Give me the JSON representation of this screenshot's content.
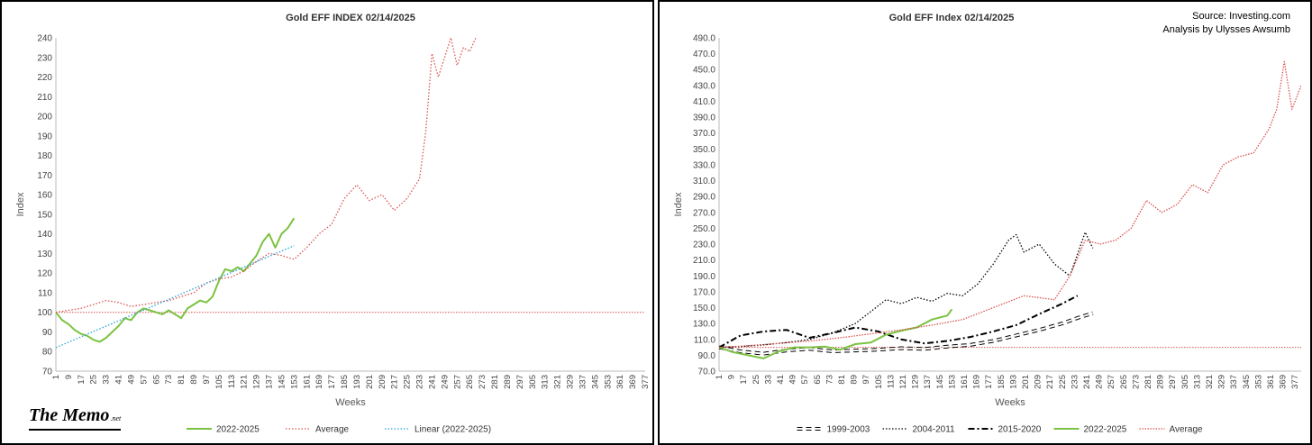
{
  "charts": [
    {
      "type": "line",
      "title": "Gold EFF  INDEX 02/14/2025",
      "xlabel": "Weeks",
      "ylabel": "Index",
      "xlim": [
        1,
        377
      ],
      "ylim": [
        70,
        240
      ],
      "yticks": [
        70,
        80,
        90,
        100,
        110,
        120,
        130,
        140,
        150,
        160,
        170,
        180,
        190,
        200,
        210,
        220,
        230,
        240
      ],
      "xtick_start": 1,
      "xtick_step": 8,
      "xtick_end": 377,
      "legend_position": "bottom",
      "reference_line": 100,
      "series": [
        {
          "name": "2022-2025",
          "color": "#7cc242",
          "style": "solid",
          "x": [
            1,
            5,
            9,
            13,
            17,
            21,
            25,
            29,
            33,
            37,
            41,
            45,
            49,
            53,
            57,
            61,
            65,
            69,
            73,
            77,
            81,
            85,
            89,
            93,
            97,
            101,
            105,
            109,
            113,
            117,
            121,
            125,
            129,
            133,
            137,
            141,
            145,
            149,
            153
          ],
          "y": [
            100,
            96,
            94,
            91,
            89,
            88,
            86,
            85,
            87,
            90,
            93,
            97,
            96,
            100,
            102,
            101,
            100,
            99,
            101,
            99,
            97,
            102,
            104,
            106,
            105,
            108,
            116,
            122,
            121,
            123,
            121,
            125,
            129,
            136,
            140,
            133,
            140,
            143,
            148
          ]
        },
        {
          "name": "Average",
          "color": "#d9534f",
          "style": "dotted",
          "x": [
            1,
            9,
            17,
            25,
            33,
            41,
            49,
            57,
            65,
            73,
            81,
            89,
            97,
            105,
            113,
            121,
            129,
            137,
            145,
            153,
            161,
            169,
            177,
            185,
            193,
            201,
            209,
            217,
            225,
            233,
            237,
            241,
            245,
            249,
            253,
            257,
            261,
            265,
            269
          ],
          "y": [
            100,
            101,
            102,
            104,
            106,
            105,
            103,
            104,
            105,
            106,
            108,
            110,
            115,
            117,
            118,
            121,
            126,
            130,
            129,
            127,
            133,
            140,
            145,
            158,
            165,
            157,
            160,
            152,
            158,
            168,
            192,
            232,
            220,
            230,
            240,
            226,
            235,
            233,
            240
          ]
        },
        {
          "name": "Linear (2022-2025)",
          "color": "#29a3d8",
          "style": "dotted",
          "x": [
            1,
            153
          ],
          "y": [
            82,
            134
          ]
        }
      ]
    },
    {
      "type": "line",
      "title": "Gold EFF Index 02/14/2025",
      "source": "Source: Investing.com",
      "credit": "Analysis by Ulysses Awsumb",
      "xlabel": "Weeks",
      "ylabel": "Index",
      "xlim": [
        1,
        381
      ],
      "ylim": [
        70,
        490
      ],
      "yticks": [
        70.0,
        90.0,
        110.0,
        130.0,
        150.0,
        170.0,
        190.0,
        210.0,
        230.0,
        250.0,
        270.0,
        290.0,
        310.0,
        330.0,
        350.0,
        370.0,
        390.0,
        410.0,
        430.0,
        450.0,
        470.0,
        490.0
      ],
      "xtick_start": 1,
      "xtick_step": 8,
      "xtick_end": 377,
      "legend_position": "bottom",
      "reference_line": 100,
      "series": [
        {
          "name": "1999-2003",
          "color": "#000000",
          "style": "double",
          "x": [
            1,
            15,
            30,
            45,
            60,
            75,
            90,
            105,
            120,
            135,
            150,
            165,
            180,
            195,
            210,
            225,
            235,
            245
          ],
          "y": [
            100,
            95,
            92,
            96,
            98,
            95,
            96,
            97,
            99,
            98,
            101,
            103,
            108,
            115,
            122,
            130,
            137,
            143
          ]
        },
        {
          "name": "2004-2011",
          "color": "#000000",
          "style": "dotted",
          "x": [
            1,
            15,
            30,
            45,
            60,
            75,
            90,
            100,
            110,
            120,
            130,
            140,
            150,
            160,
            170,
            180,
            190,
            195,
            200,
            210,
            220,
            230,
            240,
            245
          ],
          "y": [
            100,
            101,
            103,
            106,
            110,
            118,
            130,
            145,
            160,
            155,
            163,
            158,
            168,
            165,
            180,
            205,
            235,
            242,
            220,
            230,
            205,
            190,
            245,
            225
          ]
        },
        {
          "name": "2015-2020",
          "color": "#000000",
          "style": "dashdot",
          "x": [
            1,
            15,
            30,
            45,
            60,
            75,
            90,
            105,
            120,
            135,
            150,
            165,
            180,
            195,
            210,
            225,
            235
          ],
          "y": [
            100,
            115,
            120,
            122,
            112,
            118,
            125,
            120,
            110,
            105,
            108,
            113,
            120,
            128,
            142,
            155,
            165
          ]
        },
        {
          "name": "2022-2025",
          "color": "#7cc242",
          "style": "solid",
          "x": [
            1,
            10,
            20,
            30,
            40,
            50,
            60,
            70,
            80,
            90,
            100,
            110,
            120,
            130,
            140,
            150,
            153
          ],
          "y": [
            100,
            94,
            90,
            86,
            95,
            100,
            100,
            101,
            97,
            104,
            106,
            116,
            121,
            125,
            135,
            140,
            148
          ]
        },
        {
          "name": "Average",
          "color": "#d9534f",
          "style": "dotted_dark",
          "x": [
            1,
            20,
            40,
            60,
            80,
            100,
            120,
            140,
            160,
            180,
            200,
            220,
            230,
            240,
            250,
            260,
            270,
            280,
            290,
            300,
            310,
            320,
            330,
            340,
            350,
            360,
            365,
            370,
            375,
            381
          ],
          "y": [
            100,
            102,
            105,
            108,
            112,
            117,
            122,
            128,
            135,
            150,
            165,
            160,
            190,
            235,
            230,
            235,
            250,
            285,
            270,
            280,
            305,
            295,
            330,
            340,
            345,
            375,
            400,
            460,
            400,
            430
          ]
        }
      ]
    }
  ],
  "branding": {
    "name": "The Memo",
    "suffix": ".net"
  }
}
